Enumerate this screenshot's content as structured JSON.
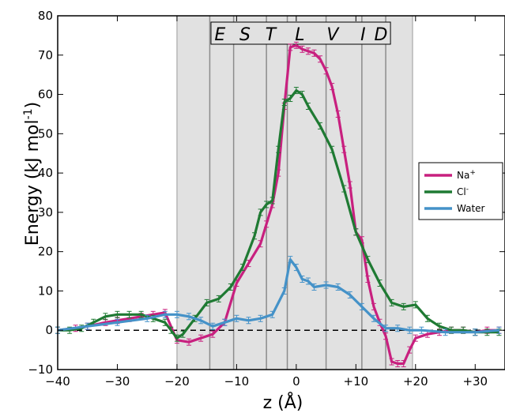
{
  "chart_data": {
    "type": "line",
    "xlabel": "z (Å)",
    "ylabel": "Energy (kJ mol",
    "ylabel_sup": "-1",
    "ylabel_tail": ")",
    "xlim": [
      -40,
      35
    ],
    "ylim": [
      -10,
      80
    ],
    "x_ticks": [
      -40,
      -30,
      -20,
      -10,
      0,
      10,
      20,
      30
    ],
    "x_tick_labels": [
      "−40",
      "−30",
      "−20",
      "−10",
      "0",
      "+10",
      "+20",
      "+30"
    ],
    "y_ticks": [
      -10,
      0,
      10,
      20,
      30,
      40,
      50,
      60,
      70,
      80
    ],
    "y_tick_labels": [
      "−10",
      "0",
      "10",
      "20",
      "30",
      "40",
      "50",
      "60",
      "70",
      "80"
    ],
    "shaded_region": [
      -20,
      19.5
    ],
    "residue_dividers": [
      -14.5,
      -10.5,
      -5,
      -1.5,
      5,
      11,
      15
    ],
    "residues": [
      "E",
      "S",
      "T",
      "L",
      "V",
      "I",
      "D"
    ],
    "zero_line": 0,
    "legend_position": "right",
    "series": [
      {
        "name": "Na",
        "name_sup": "+",
        "color": "#c8207f",
        "x": [
          -40,
          -37,
          -35,
          -32,
          -30,
          -28,
          -26,
          -24,
          -22,
          -20,
          -18,
          -16,
          -14,
          -12,
          -10,
          -8,
          -6,
          -5,
          -4,
          -3,
          -2,
          -1,
          0,
          1,
          2,
          3,
          4,
          5,
          6,
          7,
          8,
          9,
          10,
          11,
          12,
          13,
          14,
          15,
          16,
          17,
          18,
          19,
          20,
          22,
          24,
          26,
          28,
          30,
          32,
          34
        ],
        "y": [
          0,
          0.5,
          1,
          2,
          2.5,
          3,
          3.5,
          4,
          4.5,
          -2.5,
          -3,
          -2,
          -1,
          2,
          12,
          17,
          22,
          27,
          32,
          40,
          57,
          72,
          72.5,
          71.5,
          71,
          70.5,
          69,
          66,
          62,
          55,
          46,
          37,
          25,
          23,
          13,
          6,
          2,
          -1.5,
          -8,
          -8.5,
          -8.5,
          -5,
          -2,
          -1,
          -0.5,
          0,
          0,
          -0.5,
          0,
          0
        ]
      },
      {
        "name": "Cl",
        "name_sup": "-",
        "color": "#1f7a33",
        "x": [
          -40,
          -38,
          -36,
          -34,
          -32,
          -30,
          -28,
          -26,
          -24,
          -22,
          -21,
          -20,
          -19,
          -17,
          -15,
          -13,
          -11,
          -9,
          -7,
          -6,
          -5,
          -4,
          -3,
          -2,
          -1,
          0,
          1,
          2,
          4,
          6,
          8,
          10,
          12,
          14,
          16,
          18,
          20,
          22,
          24,
          26,
          28,
          30,
          32,
          34
        ],
        "y": [
          0,
          0,
          0.5,
          2,
          3.5,
          4,
          4,
          4,
          3,
          2,
          0,
          -2,
          -1,
          3,
          7,
          8,
          11,
          16,
          24,
          30,
          32,
          33,
          46,
          58,
          59,
          61,
          60,
          57,
          52,
          46,
          36,
          25,
          18,
          12,
          7,
          6,
          6.5,
          3,
          1,
          0,
          0,
          -0.5,
          -0.5,
          -0.5
        ]
      },
      {
        "name": "Water",
        "name_sup": "",
        "color": "#4592c8",
        "x": [
          -40,
          -35,
          -30,
          -25,
          -22,
          -20,
          -18,
          -16,
          -14,
          -12,
          -10,
          -8,
          -6,
          -4,
          -2,
          -1,
          0,
          1,
          2,
          3,
          5,
          7,
          9,
          11,
          13,
          15,
          17,
          19,
          21,
          25,
          30,
          34
        ],
        "y": [
          0,
          1,
          2,
          3,
          4,
          4,
          3.5,
          2.5,
          1,
          2,
          3,
          2.5,
          3,
          4,
          10,
          18,
          16,
          13,
          12.5,
          11,
          11.5,
          11,
          9,
          6,
          3,
          0.5,
          0.5,
          0,
          0,
          -0.5,
          -0.5,
          0
        ]
      }
    ]
  }
}
